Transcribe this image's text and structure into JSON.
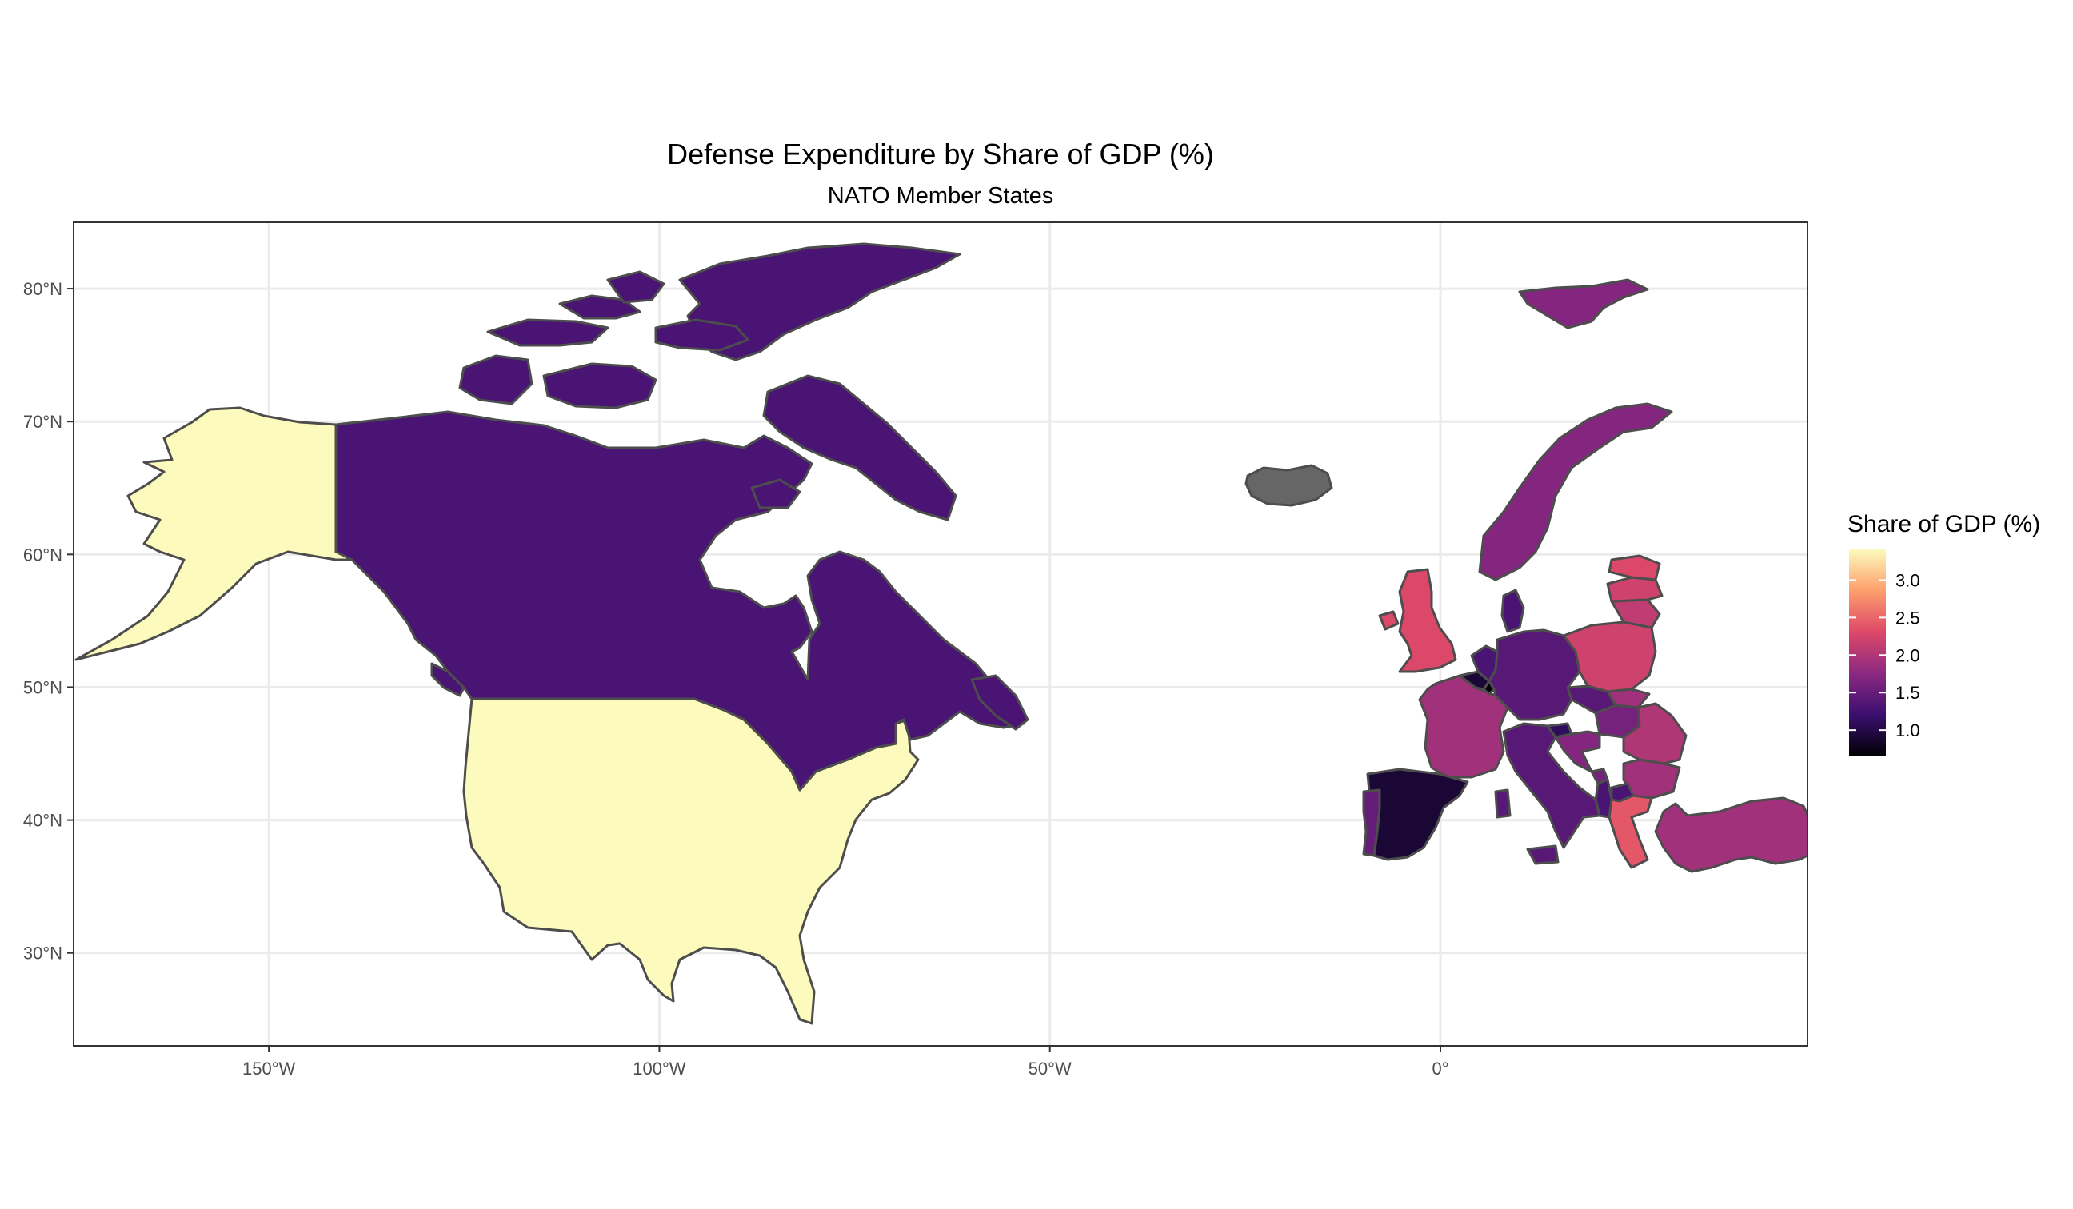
{
  "title": "Defense Expenditure by Share of GDP (%)",
  "subtitle": "NATO Member States",
  "legend": {
    "title": "Share of GDP (%)",
    "ticks": [
      "3.0",
      "2.5",
      "2.0",
      "1.5",
      "1.0"
    ],
    "tick_values": [
      3.0,
      2.5,
      2.0,
      1.5,
      1.0
    ],
    "range": [
      0.65,
      3.42
    ],
    "colors": [
      "#000004",
      "#3b0f70",
      "#8c2981",
      "#de4968",
      "#fe9f6d",
      "#fcfdbf"
    ]
  },
  "axes": {
    "x_ticks": [
      "150°W",
      "100°W",
      "50°W",
      "0°"
    ],
    "x_tick_values": [
      -150,
      -100,
      -50,
      0
    ],
    "y_ticks": [
      "80°N",
      "70°N",
      "60°N",
      "50°N",
      "40°N",
      "30°N"
    ],
    "y_tick_values": [
      80,
      70,
      60,
      50,
      40,
      30
    ],
    "xlim": [
      -175,
      47
    ],
    "ylim": [
      23,
      85
    ]
  },
  "colors": {
    "no_data": "#666666",
    "border": "#4d4d4d",
    "grid": "#ebebeb"
  },
  "chart_data": {
    "type": "choropleth",
    "value_label": "Share of GDP (%)",
    "regions": [
      {
        "name": "United States",
        "value": 3.4
      },
      {
        "name": "Canada",
        "value": 1.3
      },
      {
        "name": "United Kingdom",
        "value": 2.3
      },
      {
        "name": "France",
        "value": 1.9
      },
      {
        "name": "Spain",
        "value": 0.9
      },
      {
        "name": "Portugal",
        "value": 1.5
      },
      {
        "name": "Norway",
        "value": 1.7
      },
      {
        "name": "Denmark",
        "value": 1.3
      },
      {
        "name": "Germany",
        "value": 1.4
      },
      {
        "name": "Netherlands",
        "value": 1.3
      },
      {
        "name": "Belgium",
        "value": 0.9
      },
      {
        "name": "Poland",
        "value": 2.2
      },
      {
        "name": "Lithuania",
        "value": 2.1
      },
      {
        "name": "Latvia",
        "value": 2.2
      },
      {
        "name": "Estonia",
        "value": 2.3
      },
      {
        "name": "Czech Republic",
        "value": 1.4
      },
      {
        "name": "Slovakia",
        "value": 1.9
      },
      {
        "name": "Hungary",
        "value": 1.6
      },
      {
        "name": "Romania",
        "value": 2.0
      },
      {
        "name": "Bulgaria",
        "value": 1.9
      },
      {
        "name": "Greece",
        "value": 2.4
      },
      {
        "name": "Turkey",
        "value": 1.9
      },
      {
        "name": "Italy",
        "value": 1.4
      },
      {
        "name": "Slovenia",
        "value": 1.1
      },
      {
        "name": "Croatia",
        "value": 1.7
      },
      {
        "name": "Albania",
        "value": 1.3
      },
      {
        "name": "Montenegro",
        "value": 1.6
      },
      {
        "name": "North Macedonia",
        "value": 1.3
      },
      {
        "name": "Luxembourg",
        "value": 0.6
      },
      {
        "name": "Iceland",
        "value": null
      }
    ]
  }
}
